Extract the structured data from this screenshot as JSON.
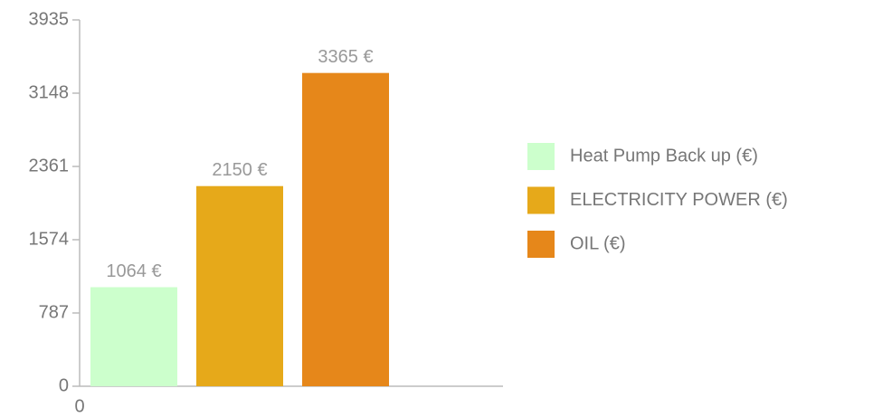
{
  "chart_data": {
    "type": "bar",
    "series": [
      {
        "name": "Heat Pump Back up (€)",
        "color": "#ccffcc",
        "values": [
          1064
        ],
        "value_labels": [
          "1064 €"
        ]
      },
      {
        "name": "ELECTRICITY POWER (€)",
        "color": "#e6a91a",
        "values": [
          2150
        ],
        "value_labels": [
          "2150 €"
        ]
      },
      {
        "name": "OIL (€)",
        "color": "#e6871a",
        "values": [
          3365
        ],
        "value_labels": [
          "3365 €"
        ]
      }
    ],
    "ylim": [
      0,
      3935
    ],
    "yticks": [
      0,
      787,
      1574,
      2361,
      3148,
      3935
    ],
    "xticks": [
      0
    ],
    "legend": "right"
  }
}
